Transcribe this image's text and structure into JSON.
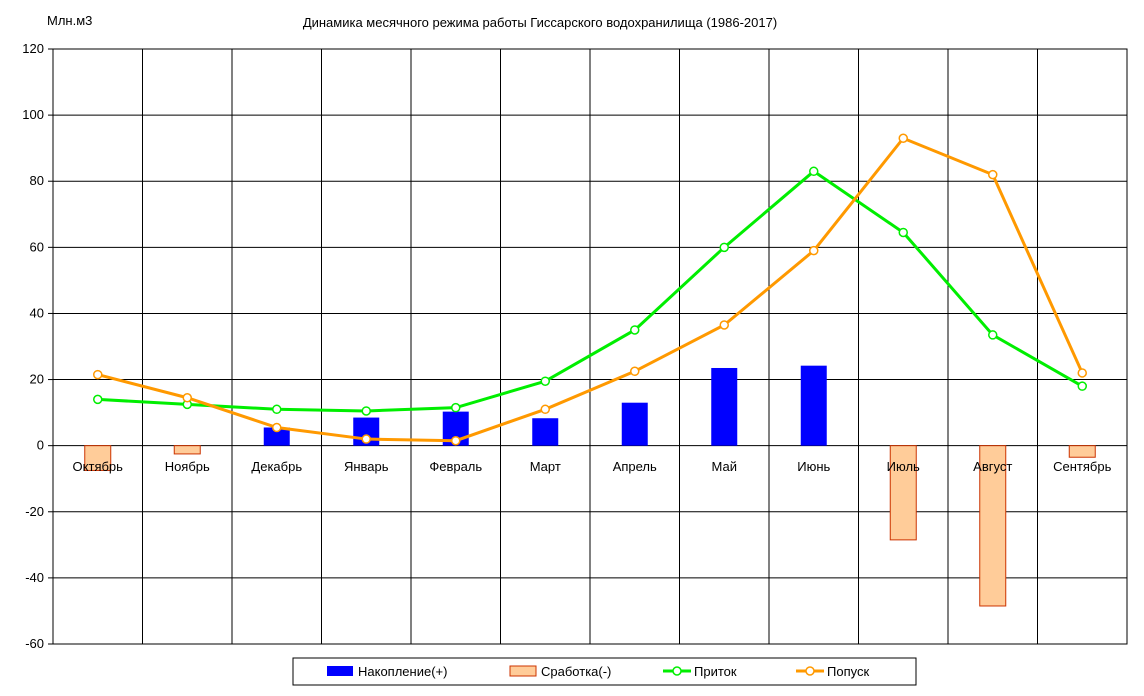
{
  "chart_data": {
    "type": "bar",
    "title": "Динамика месячного режима работы Гиссарского водохранилища (1986-2017)",
    "ylabel": "Млн.м3",
    "categories": [
      "Октябрь",
      "Ноябрь",
      "Декабрь",
      "Январь",
      "Февраль",
      "Март",
      "Апрель",
      "Май",
      "Июнь",
      "Июль",
      "Август",
      "Сентябрь"
    ],
    "ylim": [
      -60,
      120
    ],
    "yticks": [
      "120",
      "100",
      "80",
      "60",
      "40",
      "20",
      "0",
      "-20",
      "-40",
      "-60"
    ],
    "grid": true,
    "legend_position": "bottom",
    "series": [
      {
        "name": "Накопление(+)",
        "kind": "bar",
        "color": "#0000ff",
        "values": [
          0,
          0,
          5.5,
          8.5,
          10.3,
          8.3,
          13,
          23.5,
          24.2,
          0,
          0,
          0
        ]
      },
      {
        "name": "Сработка(-)",
        "kind": "bar",
        "color": "#ffcc99",
        "edge": "#cc3300",
        "values": [
          -7.5,
          -2.5,
          0,
          0,
          0,
          0,
          0,
          0,
          0,
          -28.5,
          -48.5,
          -3.5
        ]
      },
      {
        "name": "Приток",
        "kind": "line",
        "color": "#00ee00",
        "values": [
          14,
          12.5,
          11,
          10.5,
          11.5,
          19.5,
          35,
          60,
          83,
          64.5,
          33.5,
          18
        ]
      },
      {
        "name": "Попуск",
        "kind": "line",
        "color": "#ff9900",
        "values": [
          21.5,
          14.5,
          5.5,
          2,
          1.5,
          11,
          22.5,
          36.5,
          59,
          93,
          82,
          22
        ]
      }
    ]
  }
}
